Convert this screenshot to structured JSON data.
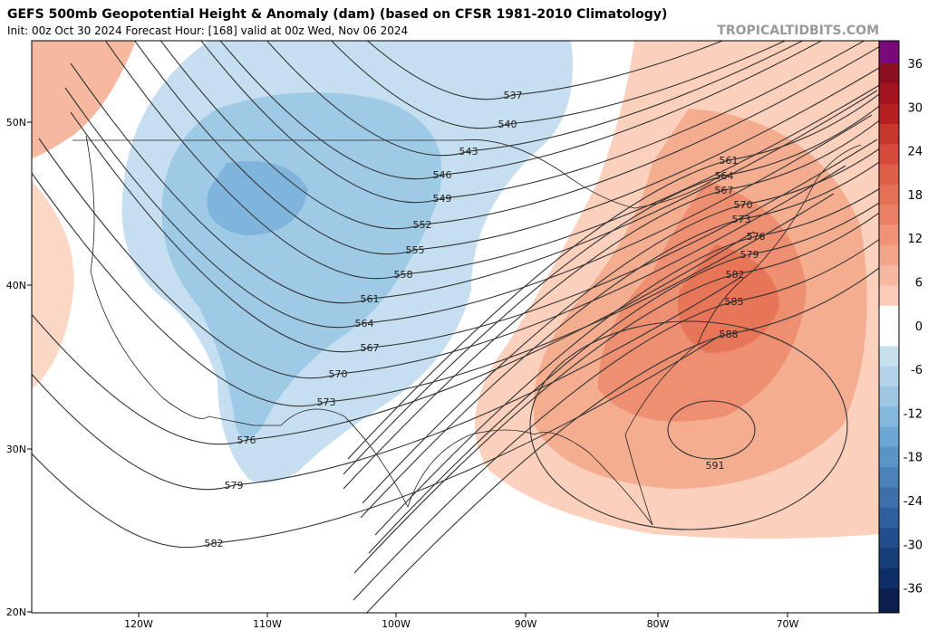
{
  "header": {
    "title": "GEFS 500mb Geopotential Height & Anomaly (dam) (based on CFSR 1981-2010 Climatology)",
    "subtitle": "Init: 00z Oct 30 2024   Forecast Hour: [168]   valid at 00z Wed, Nov 06 2024",
    "watermark": "TROPICALTIDBITS.COM"
  },
  "map": {
    "lat_labels": [
      "50N",
      "40N",
      "30N",
      "20N"
    ],
    "lon_labels": [
      "120W",
      "110W",
      "100W",
      "90W",
      "80W",
      "70W"
    ],
    "contour_labels": [
      "537",
      "540",
      "543",
      "546",
      "549",
      "552",
      "555",
      "558",
      "561",
      "564",
      "567",
      "570",
      "573",
      "576",
      "579",
      "582",
      "561",
      "564",
      "567",
      "570",
      "573",
      "576",
      "579",
      "582",
      "585",
      "588",
      "591"
    ]
  },
  "colorbar": {
    "labels": [
      "36",
      "30",
      "24",
      "18",
      "12",
      "6",
      "0",
      "-6",
      "-12",
      "-18",
      "-24",
      "-30",
      "-36"
    ]
  }
}
